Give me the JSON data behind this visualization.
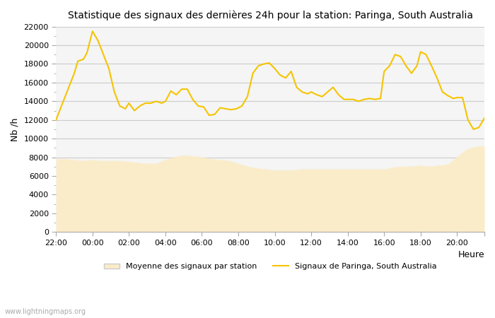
{
  "title": "Statistique des signaux des dernières 24h pour la station: Paringa, South Australia",
  "xlabel": "Heure",
  "ylabel": "Nb /h",
  "ylim": [
    0,
    22000
  ],
  "yticks": [
    0,
    2000,
    4000,
    6000,
    8000,
    10000,
    12000,
    14000,
    16000,
    18000,
    20000,
    22000
  ],
  "background_color": "#ffffff",
  "plot_bg_color": "#f5f5f5",
  "grid_color": "#cccccc",
  "watermark": "www.lightningmaps.org",
  "legend_label_avg": "Moyenne des signaux par station",
  "legend_label_signal": "Signaux de Paringa, South Australia",
  "line_color": "#f5c400",
  "fill_color": "#faecc8",
  "xtick_labels": [
    "22:00",
    "00:00",
    "02:00",
    "04:00",
    "06:00",
    "08:00",
    "10:00",
    "12:00",
    "14:00",
    "16:00",
    "18:00",
    "20:00",
    ""
  ],
  "x_hours": [
    22,
    24,
    26,
    28,
    30,
    32,
    34,
    36,
    38,
    40,
    42,
    44,
    45.5
  ],
  "signal_x": [
    22.0,
    22.2,
    22.5,
    22.8,
    23.0,
    23.2,
    23.5,
    23.7,
    24.0,
    24.3,
    24.6,
    24.9,
    25.2,
    25.5,
    25.8,
    26.0,
    26.3,
    26.6,
    26.9,
    27.2,
    27.5,
    27.8,
    28.0,
    28.3,
    28.6,
    28.9,
    29.2,
    29.5,
    29.8,
    30.1,
    30.4,
    30.7,
    31.0,
    31.3,
    31.6,
    31.9,
    32.2,
    32.5,
    32.8,
    33.1,
    33.4,
    33.7,
    34.0,
    34.3,
    34.6,
    34.9,
    35.2,
    35.5,
    35.8,
    36.0,
    36.3,
    36.6,
    36.9,
    37.2,
    37.5,
    37.8,
    38.0,
    38.3,
    38.6,
    38.9,
    39.2,
    39.5,
    39.8,
    40.0,
    40.3,
    40.6,
    40.9,
    41.2,
    41.5,
    41.8,
    42.0,
    42.3,
    42.6,
    42.9,
    43.2,
    43.5,
    43.8,
    44.0,
    44.3,
    44.6,
    44.9,
    45.2,
    45.5
  ],
  "signal_y": [
    12000,
    13000,
    14500,
    16000,
    17000,
    18300,
    18500,
    19200,
    21500,
    20500,
    19000,
    17500,
    15000,
    13500,
    13200,
    13800,
    13000,
    13500,
    13800,
    13800,
    14000,
    13800,
    14000,
    15100,
    14700,
    15300,
    15300,
    14200,
    13500,
    13400,
    12500,
    12600,
    13300,
    13200,
    13100,
    13200,
    13500,
    14500,
    17000,
    17800,
    18000,
    18100,
    17500,
    16800,
    16500,
    17200,
    15500,
    15000,
    14800,
    15000,
    14700,
    14500,
    15000,
    15500,
    14700,
    14200,
    14200,
    14200,
    14000,
    14200,
    14300,
    14200,
    14300,
    17200,
    17800,
    19000,
    18800,
    17800,
    17000,
    17800,
    19300,
    19000,
    17800,
    16500,
    15000,
    14600,
    14300,
    14400,
    14400,
    12000,
    11000,
    11200,
    12200
  ],
  "avg_x": [
    22.0,
    22.5,
    23.0,
    23.5,
    24.0,
    24.5,
    25.0,
    25.5,
    26.0,
    26.5,
    27.0,
    27.5,
    28.0,
    28.5,
    29.0,
    29.5,
    30.0,
    30.5,
    31.0,
    31.5,
    32.0,
    32.5,
    33.0,
    33.5,
    34.0,
    34.5,
    35.0,
    35.5,
    36.0,
    36.5,
    37.0,
    37.5,
    38.0,
    38.5,
    39.0,
    39.5,
    40.0,
    40.5,
    41.0,
    41.5,
    42.0,
    42.5,
    43.0,
    43.5,
    44.0,
    44.5,
    45.0,
    45.5
  ],
  "avg_y": [
    7800,
    7800,
    7700,
    7600,
    7700,
    7600,
    7600,
    7600,
    7500,
    7400,
    7300,
    7300,
    7700,
    8000,
    8200,
    8100,
    8000,
    7800,
    7700,
    7600,
    7300,
    7000,
    6800,
    6700,
    6600,
    6600,
    6600,
    6700,
    6700,
    6700,
    6700,
    6700,
    6700,
    6700,
    6700,
    6700,
    6700,
    6900,
    7000,
    7000,
    7100,
    7000,
    7100,
    7200,
    8000,
    8800,
    9100,
    9200
  ]
}
